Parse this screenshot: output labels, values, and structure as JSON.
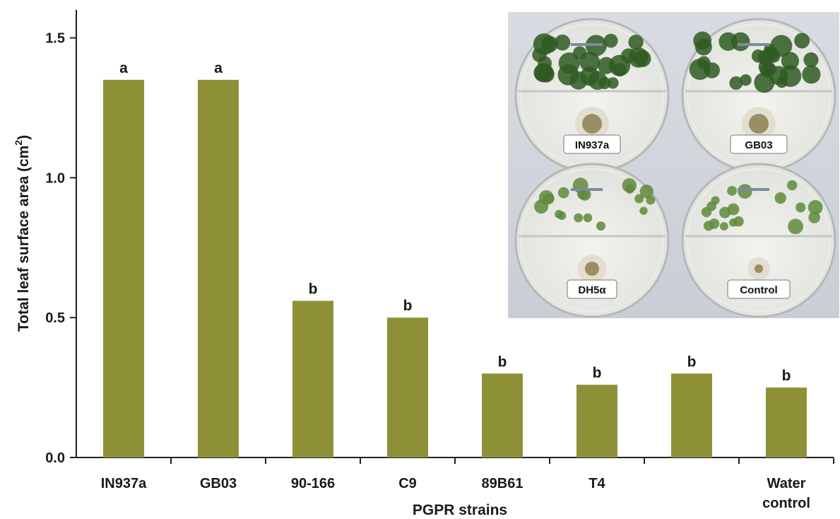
{
  "chart_data": {
    "type": "bar",
    "categories": [
      "IN937a",
      "GB03",
      "90-166",
      "C9",
      "89B61",
      "T4",
      "",
      [
        "Water",
        "control"
      ]
    ],
    "values": [
      1.35,
      1.35,
      0.56,
      0.5,
      0.3,
      0.26,
      0.3,
      0.25
    ],
    "significance": [
      "a",
      "a",
      "b",
      "b",
      "b",
      "b",
      "b",
      "b"
    ],
    "xlabel": "PGPR strains",
    "ylabel": "Total leaf surface area (cm",
    "ylabel_superscript": "2",
    "ylabel_suffix": ")",
    "ylim": [
      0,
      1.6
    ],
    "yticks": [
      "0.0",
      "0.5",
      "1.0",
      "1.5"
    ],
    "bar_color": "#8e9038",
    "grid": false
  },
  "inset": {
    "plates": [
      "IN937a",
      "GB03",
      "DH5α",
      "Control"
    ]
  }
}
